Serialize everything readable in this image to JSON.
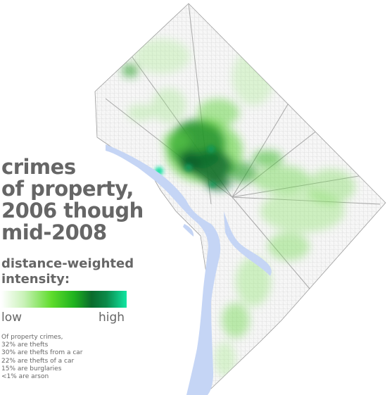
{
  "title_lines": [
    "crimes",
    "of property,",
    "2006 though",
    "mid-2008"
  ],
  "legend": {
    "title_lines": [
      "distance-weighted",
      "intensity:"
    ],
    "low_label": "low",
    "high_label": "high",
    "gradient_colors": [
      "#ffffff",
      "#c9f2b8",
      "#5fdc2c",
      "#1fb31f",
      "#0a6b2c",
      "#0b8a4a",
      "#11e6a3"
    ]
  },
  "notes": [
    "Of property crimes,",
    "32% are thefts",
    "30% are thefts from a car",
    "22% are thefts of a car",
    "15% are burglaries",
    "<1% are arson"
  ],
  "colors": {
    "water": "#c5d5f5",
    "streets": "#bdbdbd",
    "intensity_low": "#8fdf6a",
    "intensity_high": "#0a5e2c",
    "hotspot": "#15e0a0"
  }
}
